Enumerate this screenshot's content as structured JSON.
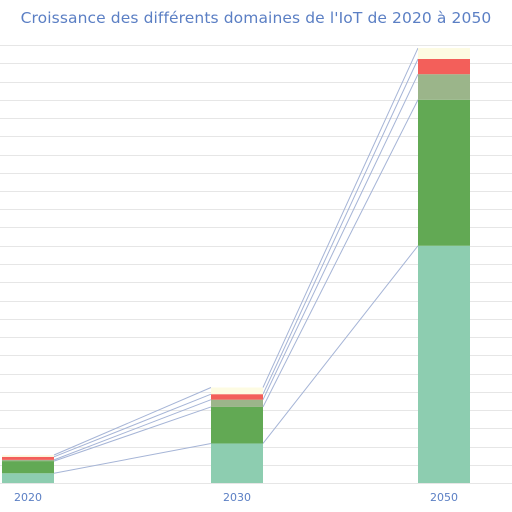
{
  "chart_data": {
    "type": "bar",
    "stacked": true,
    "title": "Croissance des différents domaines de l'IoT de 2020 à 2050",
    "categories": [
      "2020",
      "2030",
      "2050"
    ],
    "series": [
      {
        "color": "#8dcdb0",
        "values": [
          1.6,
          6.5,
          39
        ]
      },
      {
        "color": "#62a954",
        "values": [
          2.0,
          6.0,
          24
        ]
      },
      {
        "color": "#9bb58a",
        "values": [
          0.2,
          1.2,
          4.2
        ]
      },
      {
        "color": "#f35f5a",
        "values": [
          0.5,
          0.9,
          2.5
        ]
      },
      {
        "color": "#fdfbe2",
        "values": [
          0.3,
          1.1,
          1.8
        ]
      }
    ],
    "ylim": [
      0,
      72
    ],
    "grid": true,
    "connector_color": "#a5b4d6"
  }
}
